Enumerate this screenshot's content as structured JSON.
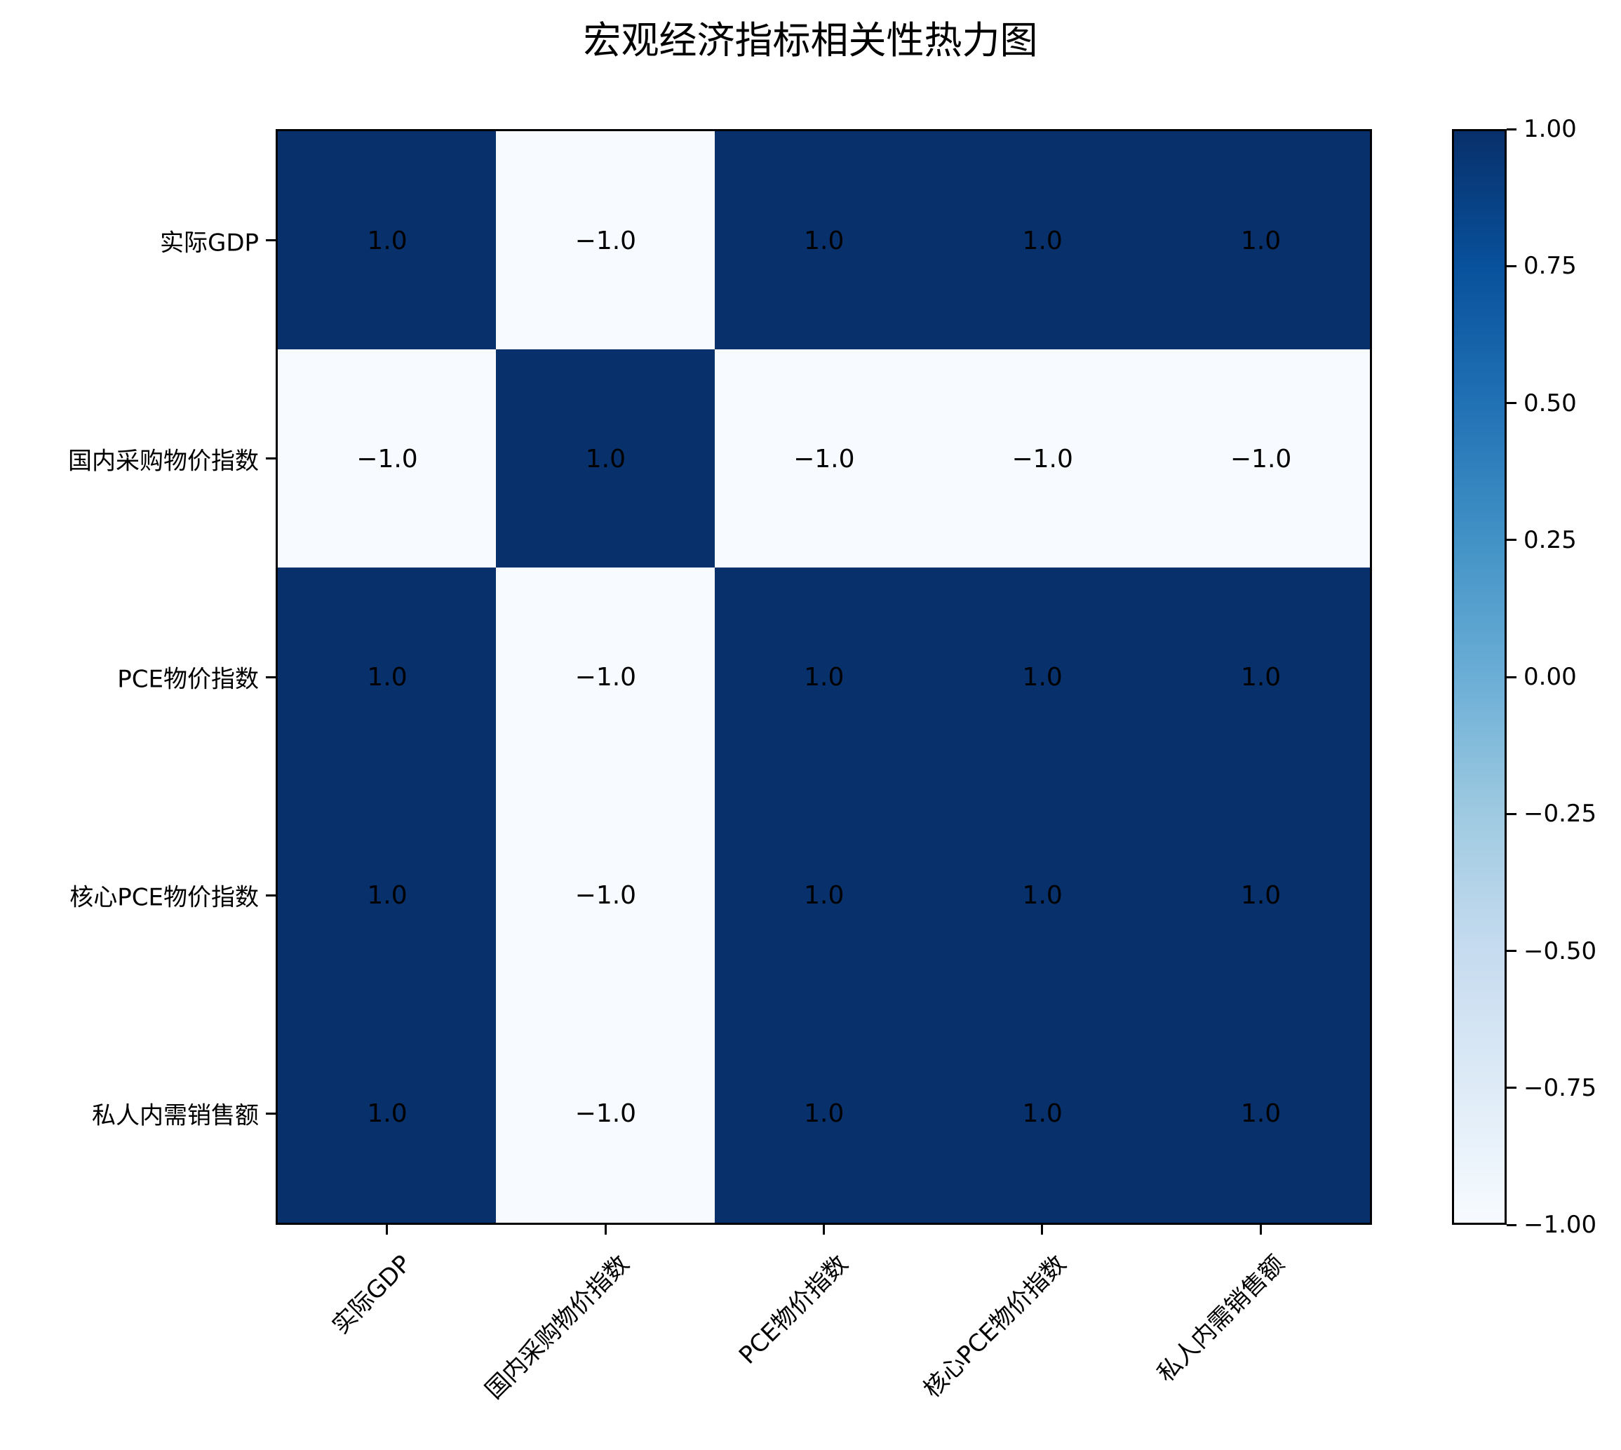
{
  "chart_data": {
    "type": "heatmap",
    "title": "宏观经济指标相关性热力图",
    "xlabel": "",
    "ylabel": "",
    "x_categories": [
      "实际GDP",
      "国内采购物价指数",
      "PCE物价指数",
      "核心PCE物价指数",
      "私人内需销售额"
    ],
    "y_categories": [
      "实际GDP",
      "国内采购物价指数",
      "PCE物价指数",
      "核心PCE物价指数",
      "私人内需销售额"
    ],
    "values": [
      [
        1.0,
        -1.0,
        1.0,
        1.0,
        1.0
      ],
      [
        -1.0,
        1.0,
        -1.0,
        -1.0,
        -1.0
      ],
      [
        1.0,
        -1.0,
        1.0,
        1.0,
        1.0
      ],
      [
        1.0,
        -1.0,
        1.0,
        1.0,
        1.0
      ],
      [
        1.0,
        -1.0,
        1.0,
        1.0,
        1.0
      ]
    ],
    "annotations_format": "0.0",
    "colormap": "Blues",
    "vmin": -1.0,
    "vmax": 1.0,
    "colorbar": {
      "ticks": [
        1.0,
        0.75,
        0.5,
        0.25,
        0.0,
        -0.25,
        -0.5,
        -0.75,
        -1.0
      ],
      "tick_labels": [
        "1.00",
        "0.75",
        "0.50",
        "0.25",
        "0.00",
        "−0.25",
        "−0.50",
        "−0.75",
        "−1.00"
      ],
      "position": "right"
    },
    "grid": false
  },
  "colors": {
    "high": "#08306b",
    "low": "#f7fbff"
  }
}
